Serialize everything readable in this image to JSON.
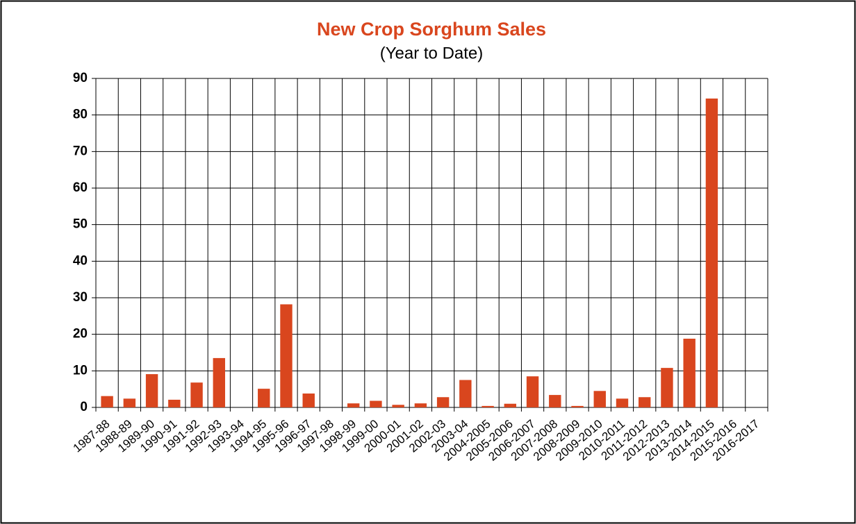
{
  "chart_data": {
    "type": "bar",
    "title": "New Crop Sorghum Sales",
    "subtitle": "(Year to Date)",
    "categories": [
      "1987-88",
      "1988-89",
      "1989-90",
      "1990-91",
      "1991-92",
      "1992-93",
      "1993-94",
      "1994-95",
      "1995-96",
      "1996-97",
      "1997-98",
      "1998-99",
      "1999-00",
      "2000-01",
      "2001-02",
      "2002-03",
      "2003-04",
      "2004-2005",
      "2005-2006",
      "2006-2007",
      "2007-2008",
      "2008-2009",
      "2009-2010",
      "2010-2011",
      "2011-2012",
      "2012-2013",
      "2013-2014",
      "2014-2015",
      "2015-2016",
      "2016-2017"
    ],
    "values": [
      3.1,
      2.4,
      9.1,
      2.1,
      6.8,
      13.5,
      null,
      5.1,
      28.2,
      3.8,
      null,
      1.1,
      1.8,
      0.7,
      1.1,
      2.8,
      7.5,
      0.4,
      1.0,
      8.5,
      3.4,
      0.4,
      4.5,
      2.4,
      2.8,
      10.8,
      18.8,
      84.5,
      null,
      null
    ],
    "color": "#d9461e",
    "ylim": [
      0,
      90
    ],
    "yticks": [
      0,
      10,
      20,
      30,
      40,
      50,
      60,
      70,
      80,
      90
    ],
    "grid": true
  }
}
